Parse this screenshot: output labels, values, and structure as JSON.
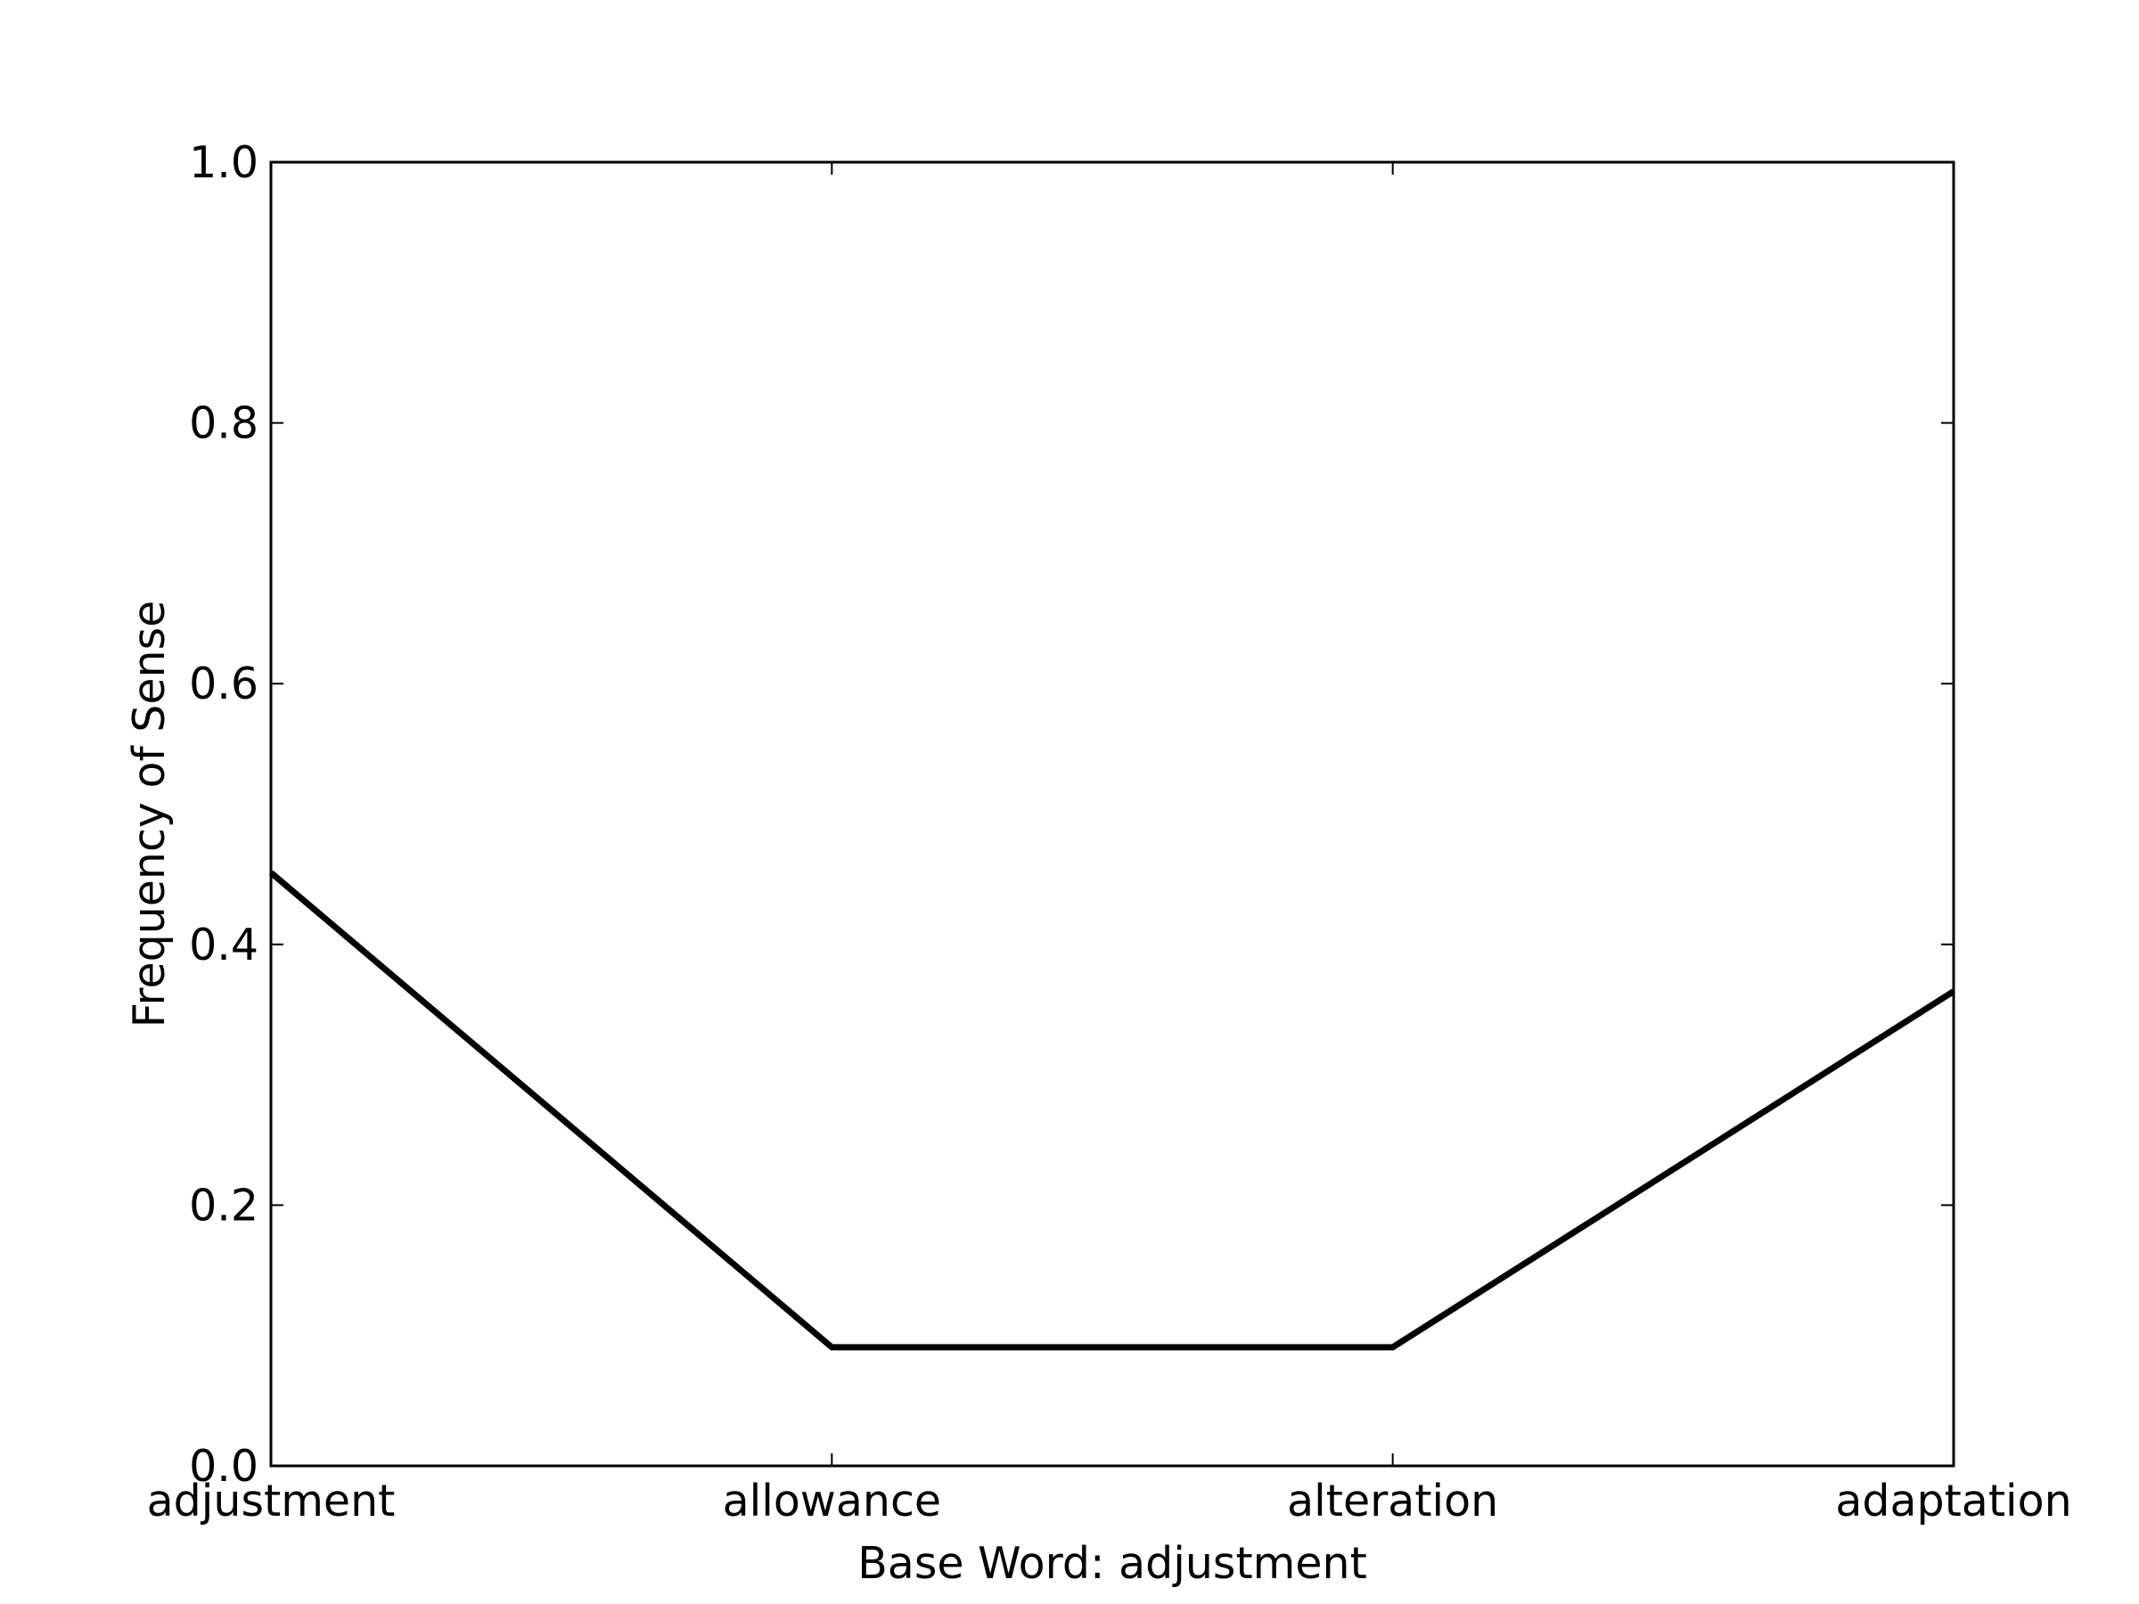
{
  "chart_data": {
    "type": "line",
    "title": "",
    "xlabel": "Base Word: adjustment",
    "ylabel": "Frequency of Sense",
    "categories": [
      "adjustment",
      "allowance",
      "alteration",
      "adaptation"
    ],
    "series": [
      {
        "values": [
          0.455,
          0.091,
          0.091,
          0.364
        ]
      }
    ],
    "ylim": [
      0.0,
      1.0
    ],
    "yticks": [
      "0.0",
      "0.2",
      "0.4",
      "0.6",
      "0.8",
      "1.0"
    ],
    "grid": false,
    "line_color": "#000000"
  }
}
